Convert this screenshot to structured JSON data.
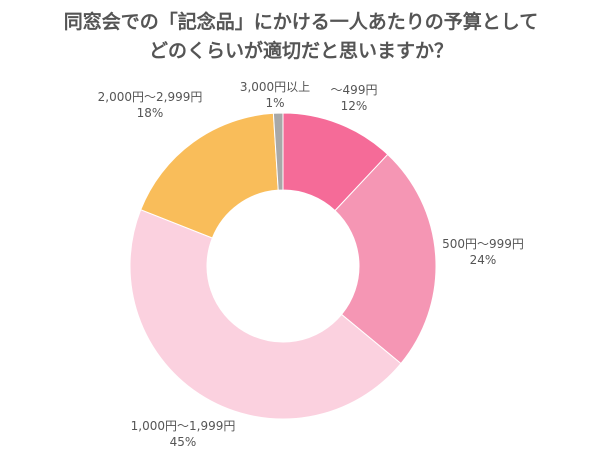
{
  "chart_data": {
    "type": "pie",
    "title_lines": [
      "同窓会での「記念品」にかける一人あたりの予算として",
      "どのくらいが適切だと思いますか？"
    ],
    "categories": [
      "～499円",
      "500円～999円",
      "1,000円～1,999円",
      "2,000円～2,999円",
      "3,000円以上"
    ],
    "values": [
      12,
      24,
      45,
      18,
      1
    ],
    "value_labels": [
      "12%",
      "24%",
      "45%",
      "18%",
      "1%"
    ],
    "unit": "%",
    "donut": true,
    "start": "top, clockwise",
    "colors": [
      "#f56b98",
      "#f596b4",
      "#fbd1df",
      "#f9bd5a",
      "#a8a8a8"
    ],
    "legend": "none"
  }
}
